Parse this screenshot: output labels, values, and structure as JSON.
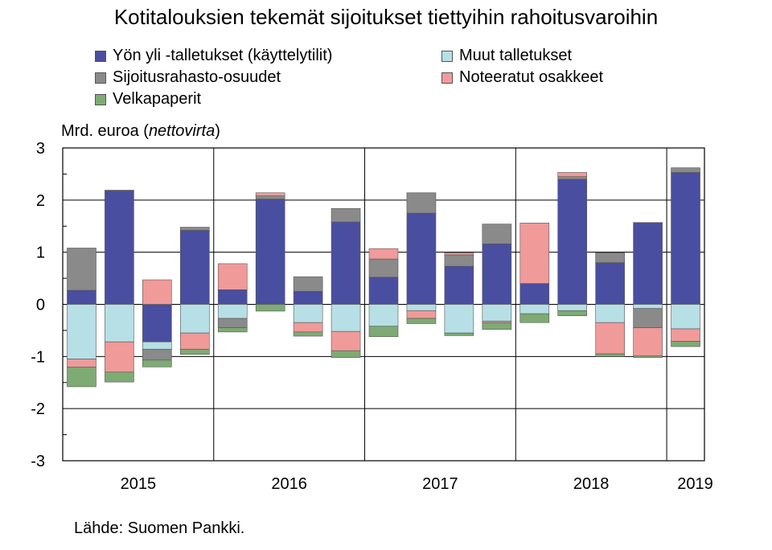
{
  "chart_data": {
    "type": "bar",
    "stacked": true,
    "title": "Kotitalouksien tekemät sijoitukset tiettyihin rahoitusvaroihin",
    "ylabel_prefix": "Mrd. euroa (",
    "ylabel_italic": "nettovirta",
    "ylabel_suffix": ")",
    "ylim": [
      -3,
      3
    ],
    "yticks": [
      "3",
      "2",
      "1",
      "0",
      "-1",
      "-2",
      "-3"
    ],
    "grid": true,
    "legend_position": "top",
    "year_labels": [
      "2015",
      "2016",
      "2017",
      "2018",
      "2019"
    ],
    "categories": [
      "2015 Q1",
      "2015 Q2",
      "2015 Q3",
      "2015 Q4",
      "2016 Q1",
      "2016 Q2",
      "2016 Q3",
      "2016 Q4",
      "2017 Q1",
      "2017 Q2",
      "2017 Q3",
      "2017 Q4",
      "2018 Q1",
      "2018 Q2",
      "2018 Q3",
      "2018 Q4",
      "2019 Q1"
    ],
    "series": [
      {
        "name": "Yön yli -talletukset (käyttelytilit)",
        "color": "#4a4ea0",
        "values": [
          0.27,
          2.18,
          -0.72,
          1.42,
          0.28,
          2.02,
          0.25,
          1.58,
          0.52,
          1.75,
          0.73,
          1.16,
          0.4,
          2.4,
          0.8,
          1.57,
          2.53
        ]
      },
      {
        "name": "Muut talletukset",
        "color": "#b7dfe6",
        "values": [
          -1.05,
          -0.72,
          -0.14,
          -0.55,
          -0.27,
          0.0,
          -0.35,
          -0.52,
          -0.42,
          -0.12,
          -0.55,
          -0.32,
          -0.18,
          -0.12,
          -0.35,
          -0.08,
          -0.47
        ]
      },
      {
        "name": "Sijoitusrahasto-osuudet",
        "color": "#8a8a8a",
        "values": [
          0.81,
          0.01,
          -0.21,
          0.06,
          -0.18,
          0.06,
          0.28,
          0.26,
          0.35,
          0.39,
          0.22,
          0.38,
          0.0,
          0.05,
          0.19,
          -0.37,
          0.09
        ]
      },
      {
        "name": "Noteeratut osakkeet",
        "color": "#f09a9a",
        "values": [
          -0.15,
          -0.58,
          0.47,
          -0.31,
          0.5,
          0.06,
          -0.18,
          -0.37,
          0.2,
          -0.15,
          0.04,
          -0.03,
          1.16,
          0.08,
          -0.6,
          -0.54,
          -0.24
        ]
      },
      {
        "name": "Velkapaperit",
        "color": "#7eab74",
        "values": [
          -0.38,
          -0.19,
          -0.13,
          -0.1,
          -0.08,
          -0.13,
          -0.08,
          -0.13,
          -0.2,
          -0.1,
          -0.05,
          -0.13,
          -0.17,
          -0.1,
          -0.05,
          -0.03,
          -0.1
        ]
      }
    ]
  },
  "source_note": "Lähde: Suomen Pankki."
}
